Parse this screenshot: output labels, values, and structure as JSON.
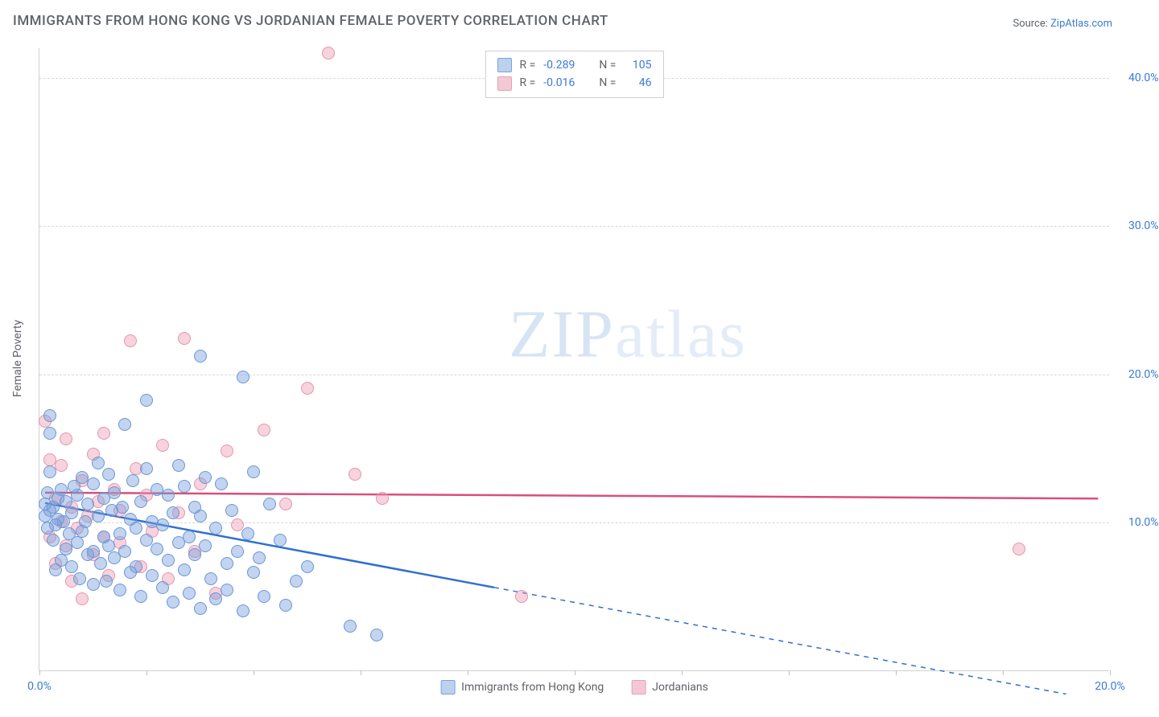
{
  "title": "IMMIGRANTS FROM HONG KONG VS JORDANIAN FEMALE POVERTY CORRELATION CHART",
  "source_prefix": "Source: ",
  "source_name": "ZipAtlas.com",
  "ylabel": "Female Poverty",
  "watermark_bold": "ZIP",
  "watermark_thin": "atlas",
  "chart": {
    "type": "scatter",
    "background_color": "#ffffff",
    "grid_color": "#d8d8d8",
    "border_color": "#d0d0d0",
    "xlim": [
      0,
      20
    ],
    "ylim": [
      0,
      42
    ],
    "xticks": [
      0,
      2,
      4,
      6,
      8,
      10,
      12,
      14,
      16,
      18,
      20
    ],
    "xtick_labels": {
      "0": "0.0%",
      "20": "20.0%"
    },
    "yticks": [
      10,
      20,
      30,
      40
    ],
    "ytick_labels": {
      "10": "10.0%",
      "20": "20.0%",
      "30": "30.0%",
      "40": "40.0%"
    },
    "label_color": "#3a7bd5",
    "text_color": "#5f6368",
    "label_fontsize": 14,
    "title_fontsize": 17,
    "series": [
      {
        "key": "hongkong",
        "label": "Immigrants from Hong Kong",
        "fill": "rgba(120,160,220,0.45)",
        "stroke": "#6a96d6",
        "trend_color": "#2f6fd0",
        "swatch_fill": "#bcd1ee",
        "swatch_stroke": "#7ba3dd",
        "R": "-0.289",
        "N": "105",
        "trend": {
          "x1": 0.1,
          "y1": 11.3,
          "x2_solid": 8.5,
          "y2_solid": 5.6,
          "x2_dash": 19.2,
          "y2_dash": -1.6
        },
        "marker_radius": 8,
        "points": [
          [
            0.1,
            11.2
          ],
          [
            0.1,
            10.4
          ],
          [
            0.15,
            9.6
          ],
          [
            0.15,
            12.0
          ],
          [
            0.2,
            10.8
          ],
          [
            0.2,
            13.4
          ],
          [
            0.2,
            17.2
          ],
          [
            0.2,
            16.0
          ],
          [
            0.25,
            8.8
          ],
          [
            0.25,
            11.0
          ],
          [
            0.3,
            9.8
          ],
          [
            0.3,
            6.8
          ],
          [
            0.35,
            10.2
          ],
          [
            0.35,
            11.6
          ],
          [
            0.4,
            7.4
          ],
          [
            0.4,
            12.2
          ],
          [
            0.45,
            10.0
          ],
          [
            0.5,
            8.2
          ],
          [
            0.5,
            11.4
          ],
          [
            0.55,
            9.2
          ],
          [
            0.6,
            10.6
          ],
          [
            0.6,
            7.0
          ],
          [
            0.65,
            12.4
          ],
          [
            0.7,
            8.6
          ],
          [
            0.7,
            11.8
          ],
          [
            0.75,
            6.2
          ],
          [
            0.8,
            9.4
          ],
          [
            0.8,
            13.0
          ],
          [
            0.85,
            10.0
          ],
          [
            0.9,
            7.8
          ],
          [
            0.9,
            11.2
          ],
          [
            1.0,
            8.0
          ],
          [
            1.0,
            12.6
          ],
          [
            1.0,
            5.8
          ],
          [
            1.1,
            10.4
          ],
          [
            1.1,
            14.0
          ],
          [
            1.15,
            7.2
          ],
          [
            1.2,
            9.0
          ],
          [
            1.2,
            11.6
          ],
          [
            1.25,
            6.0
          ],
          [
            1.3,
            8.4
          ],
          [
            1.3,
            13.2
          ],
          [
            1.35,
            10.8
          ],
          [
            1.4,
            7.6
          ],
          [
            1.4,
            12.0
          ],
          [
            1.5,
            9.2
          ],
          [
            1.5,
            5.4
          ],
          [
            1.55,
            11.0
          ],
          [
            1.6,
            8.0
          ],
          [
            1.6,
            16.6
          ],
          [
            1.7,
            10.2
          ],
          [
            1.7,
            6.6
          ],
          [
            1.75,
            12.8
          ],
          [
            1.8,
            9.6
          ],
          [
            1.8,
            7.0
          ],
          [
            1.9,
            11.4
          ],
          [
            1.9,
            5.0
          ],
          [
            2.0,
            8.8
          ],
          [
            2.0,
            13.6
          ],
          [
            2.0,
            18.2
          ],
          [
            2.1,
            10.0
          ],
          [
            2.1,
            6.4
          ],
          [
            2.2,
            12.2
          ],
          [
            2.2,
            8.2
          ],
          [
            2.3,
            9.8
          ],
          [
            2.3,
            5.6
          ],
          [
            2.4,
            11.8
          ],
          [
            2.4,
            7.4
          ],
          [
            2.5,
            4.6
          ],
          [
            2.5,
            10.6
          ],
          [
            2.6,
            8.6
          ],
          [
            2.6,
            13.8
          ],
          [
            2.7,
            6.8
          ],
          [
            2.7,
            12.4
          ],
          [
            2.8,
            9.0
          ],
          [
            2.8,
            5.2
          ],
          [
            2.9,
            11.0
          ],
          [
            2.9,
            7.8
          ],
          [
            3.0,
            4.2
          ],
          [
            3.0,
            10.4
          ],
          [
            3.0,
            21.2
          ],
          [
            3.1,
            8.4
          ],
          [
            3.1,
            13.0
          ],
          [
            3.2,
            6.2
          ],
          [
            3.3,
            9.6
          ],
          [
            3.3,
            4.8
          ],
          [
            3.4,
            12.6
          ],
          [
            3.5,
            7.2
          ],
          [
            3.5,
            5.4
          ],
          [
            3.6,
            10.8
          ],
          [
            3.7,
            8.0
          ],
          [
            3.8,
            4.0
          ],
          [
            3.8,
            19.8
          ],
          [
            3.9,
            9.2
          ],
          [
            4.0,
            6.6
          ],
          [
            4.0,
            13.4
          ],
          [
            4.1,
            7.6
          ],
          [
            4.2,
            5.0
          ],
          [
            4.3,
            11.2
          ],
          [
            4.5,
            8.8
          ],
          [
            4.6,
            4.4
          ],
          [
            4.8,
            6.0
          ],
          [
            5.0,
            7.0
          ],
          [
            5.8,
            3.0
          ],
          [
            6.3,
            2.4
          ]
        ]
      },
      {
        "key": "jordanians",
        "label": "Jordanians",
        "fill": "rgba(235,150,175,0.42)",
        "stroke": "#e495ae",
        "trend_color": "#d94f7a",
        "swatch_fill": "#f3c8d5",
        "swatch_stroke": "#e9a0b8",
        "R": "-0.016",
        "N": "46",
        "trend": {
          "x1": 0.1,
          "y1": 12.0,
          "x2_solid": 19.8,
          "y2_solid": 11.6,
          "x2_dash": 19.8,
          "y2_dash": 11.6
        },
        "marker_radius": 8,
        "points": [
          [
            0.1,
            16.8
          ],
          [
            0.2,
            14.2
          ],
          [
            0.2,
            9.0
          ],
          [
            0.3,
            11.6
          ],
          [
            0.3,
            7.2
          ],
          [
            0.4,
            10.0
          ],
          [
            0.4,
            13.8
          ],
          [
            0.5,
            8.4
          ],
          [
            0.5,
            15.6
          ],
          [
            0.6,
            11.0
          ],
          [
            0.6,
            6.0
          ],
          [
            0.7,
            9.6
          ],
          [
            0.8,
            12.8
          ],
          [
            0.8,
            4.8
          ],
          [
            0.9,
            10.4
          ],
          [
            1.0,
            14.6
          ],
          [
            1.0,
            7.8
          ],
          [
            1.1,
            11.4
          ],
          [
            1.2,
            9.0
          ],
          [
            1.2,
            16.0
          ],
          [
            1.3,
            6.4
          ],
          [
            1.4,
            12.2
          ],
          [
            1.5,
            8.6
          ],
          [
            1.5,
            10.8
          ],
          [
            1.7,
            22.2
          ],
          [
            1.8,
            13.6
          ],
          [
            1.9,
            7.0
          ],
          [
            2.0,
            11.8
          ],
          [
            2.1,
            9.4
          ],
          [
            2.3,
            15.2
          ],
          [
            2.4,
            6.2
          ],
          [
            2.6,
            10.6
          ],
          [
            2.7,
            22.4
          ],
          [
            2.9,
            8.0
          ],
          [
            3.0,
            12.6
          ],
          [
            3.3,
            5.2
          ],
          [
            3.5,
            14.8
          ],
          [
            3.7,
            9.8
          ],
          [
            4.2,
            16.2
          ],
          [
            4.6,
            11.2
          ],
          [
            5.0,
            19.0
          ],
          [
            5.4,
            41.6
          ],
          [
            5.9,
            13.2
          ],
          [
            6.4,
            11.6
          ],
          [
            9.0,
            5.0
          ],
          [
            18.3,
            8.2
          ]
        ]
      }
    ]
  },
  "legend_top": {
    "R_label": "R =",
    "N_label": "N ="
  },
  "legend_bottom_gap": 34
}
